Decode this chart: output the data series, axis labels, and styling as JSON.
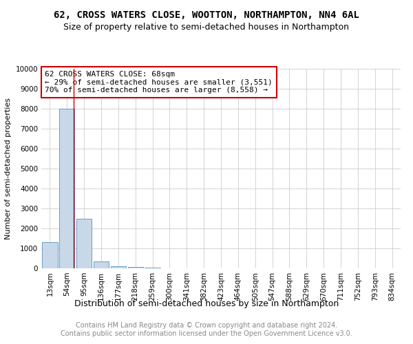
{
  "title": "62, CROSS WATERS CLOSE, WOOTTON, NORTHAMPTON, NN4 6AL",
  "subtitle": "Size of property relative to semi-detached houses in Northampton",
  "xlabel": "Distribution of semi-detached houses by size in Northampton",
  "ylabel": "Number of semi-detached properties",
  "footnote": "Contains HM Land Registry data © Crown copyright and database right 2024.\nContains public sector information licensed under the Open Government Licence v3.0.",
  "categories": [
    "13sqm",
    "54sqm",
    "95sqm",
    "136sqm",
    "177sqm",
    "218sqm",
    "259sqm",
    "300sqm",
    "341sqm",
    "382sqm",
    "423sqm",
    "464sqm",
    "505sqm",
    "547sqm",
    "588sqm",
    "629sqm",
    "670sqm",
    "711sqm",
    "752sqm",
    "793sqm",
    "834sqm"
  ],
  "values": [
    1300,
    8000,
    2500,
    350,
    100,
    70,
    50,
    0,
    0,
    0,
    0,
    0,
    0,
    0,
    0,
    0,
    0,
    0,
    0,
    0,
    0
  ],
  "bar_color": "#c8d8e8",
  "bar_edge_color": "#5090c0",
  "red_line_x": 1.38,
  "annotation_text": "62 CROSS WATERS CLOSE: 68sqm\n← 29% of semi-detached houses are smaller (3,551)\n70% of semi-detached houses are larger (8,558) →",
  "annotation_box_color": "#ffffff",
  "annotation_box_edge_color": "#cc0000",
  "ylim": [
    0,
    10000
  ],
  "yticks": [
    0,
    1000,
    2000,
    3000,
    4000,
    5000,
    6000,
    7000,
    8000,
    9000,
    10000
  ],
  "grid_color": "#cccccc",
  "background_color": "#ffffff",
  "title_fontsize": 10,
  "subtitle_fontsize": 9,
  "annotation_fontsize": 8,
  "tick_fontsize": 7.5,
  "ylabel_fontsize": 8,
  "xlabel_fontsize": 9,
  "footnote_fontsize": 7
}
